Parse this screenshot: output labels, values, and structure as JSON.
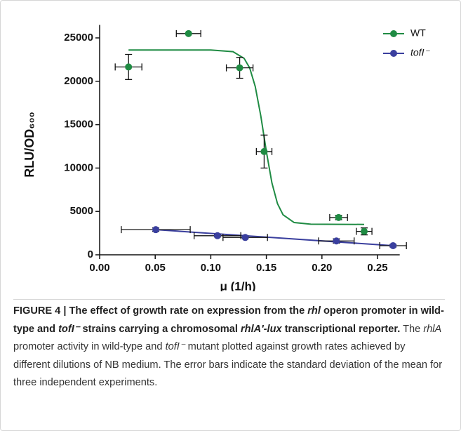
{
  "chart_data": {
    "type": "scatter",
    "xlabel": "μ (1/h)",
    "ylabel": "RLU/OD₆₀₀",
    "xlim": [
      0,
      0.27
    ],
    "ylim": [
      0,
      26500
    ],
    "xticks": [
      {
        "value": 0,
        "label": "0.00"
      },
      {
        "value": 0.05,
        "label": "0.05"
      },
      {
        "value": 0.1,
        "label": "0.10"
      },
      {
        "value": 0.15,
        "label": "0.15"
      },
      {
        "value": 0.2,
        "label": "0.20"
      },
      {
        "value": 0.25,
        "label": "0.25"
      }
    ],
    "yticks": [
      0,
      5000,
      10000,
      15000,
      20000,
      25000
    ],
    "legend": "top-right",
    "series": [
      {
        "name": "WT",
        "color": "#1f8b43",
        "x": [
          0.026,
          0.08,
          0.126,
          0.148,
          0.215,
          0.238
        ],
        "values": [
          21650,
          25500,
          21550,
          11900,
          4300,
          2700
        ],
        "xerr": [
          0.012,
          0.011,
          0.012,
          0.007,
          0.008,
          0.007
        ],
        "yerr": [
          1450,
          0,
          1200,
          1900,
          250,
          400
        ],
        "fit_x": [
          0.026,
          0.1,
          0.12,
          0.13,
          0.135,
          0.14,
          0.145,
          0.15,
          0.155,
          0.16,
          0.165,
          0.175,
          0.19,
          0.238
        ],
        "fit_y": [
          23600,
          23600,
          23410,
          22640,
          21540,
          19400,
          16010,
          11910,
          8290,
          5900,
          4620,
          3720,
          3530,
          3500
        ]
      },
      {
        "name": "tofI⁻",
        "color": "#3a3f9e",
        "x": [
          0.0505,
          0.106,
          0.131,
          0.213,
          0.264
        ],
        "values": [
          2900,
          2200,
          2000,
          1600,
          1050
        ],
        "xerr": [
          0.031,
          0.021,
          0.02,
          0.016,
          0.012
        ],
        "yerr": [
          200,
          150,
          150,
          250,
          150
        ],
        "fit_x": [
          0.0505,
          0.264
        ],
        "fit_y": [
          2900,
          1050
        ]
      }
    ]
  },
  "caption": [
    {
      "text": "FIGURE 4 | The effect of growth rate on expression from the ",
      "bold": true,
      "italic": false
    },
    {
      "text": "rhl",
      "bold": true,
      "italic": true
    },
    {
      "text": " operon promoter in wild-type and ",
      "bold": true,
      "italic": false
    },
    {
      "text": "tofI⁻",
      "bold": true,
      "italic": true
    },
    {
      "text": " strains carrying a chromosomal ",
      "bold": true,
      "italic": false
    },
    {
      "text": "rhlA′-lux",
      "bold": true,
      "italic": true
    },
    {
      "text": " transcriptional reporter.",
      "bold": true,
      "italic": false
    },
    {
      "text": " The ",
      "bold": false,
      "italic": false
    },
    {
      "text": "rhlA",
      "bold": false,
      "italic": true
    },
    {
      "text": " promoter activity in wild-type and ",
      "bold": false,
      "italic": false
    },
    {
      "text": "tofI⁻",
      "bold": false,
      "italic": true
    },
    {
      "text": " mutant plotted against growth rates achieved by different dilutions of NB medium. The error bars indicate the standard deviation of the mean for three independent experiments.",
      "bold": false,
      "italic": false
    }
  ]
}
